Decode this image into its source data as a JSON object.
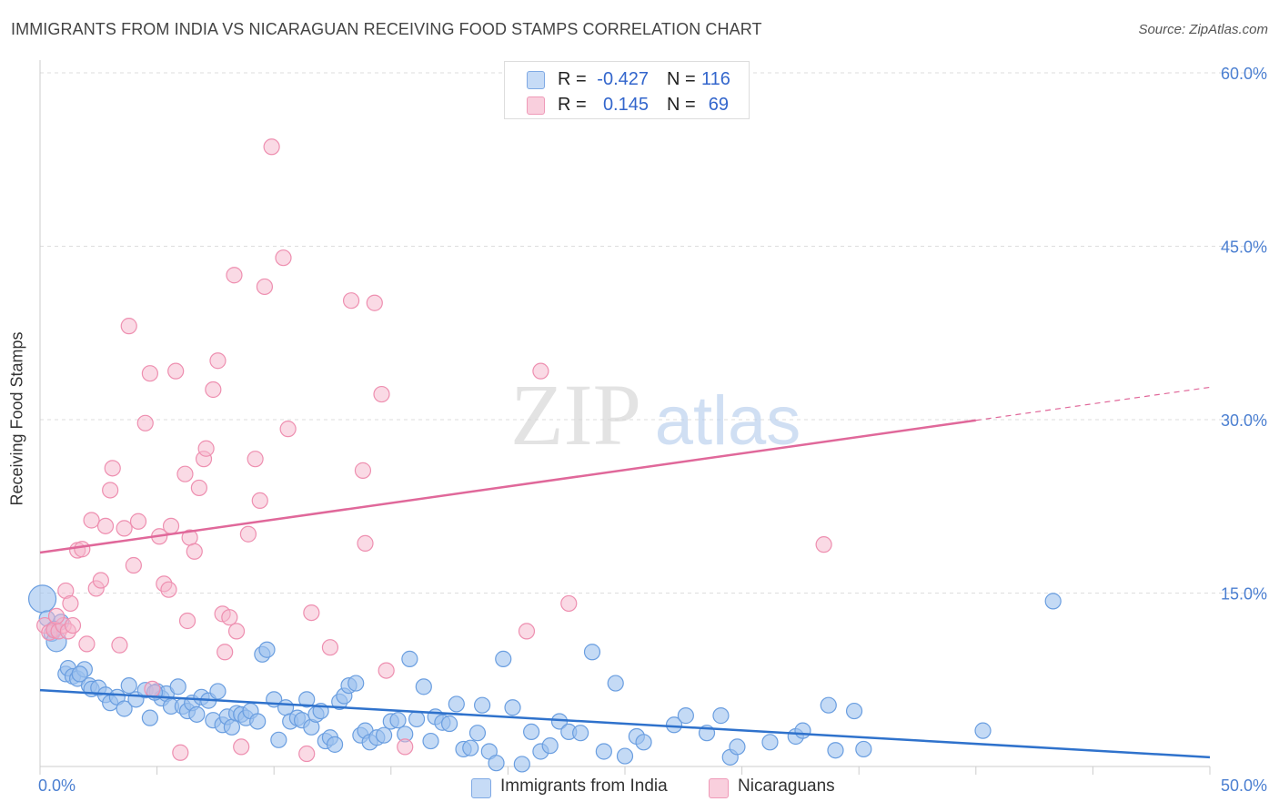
{
  "title": "IMMIGRANTS FROM INDIA VS NICARAGUAN RECEIVING FOOD STAMPS CORRELATION CHART",
  "source": "Source: ZipAtlas.com",
  "watermark": {
    "zip": "ZIP",
    "atlas": "atlas"
  },
  "legend": {
    "rows": [
      {
        "r_label": "R =",
        "r_value": "-0.427",
        "n_label": "N =",
        "n_value": "116"
      },
      {
        "r_label": "R =",
        "r_value": "0.145",
        "n_label": "N =",
        "n_value": "69"
      }
    ]
  },
  "bottom_legend": {
    "india": "Immigrants from India",
    "nicaraguans": "Nicaraguans"
  },
  "colors": {
    "india_fill": "#9dc2ee",
    "india_stroke": "#6a9ee0",
    "india_line": "#2f72cc",
    "nic_fill": "#f6b6cb",
    "nic_stroke": "#ee8fb0",
    "nic_line": "#e0689a",
    "tick_text": "#4b7fd1",
    "grid": "#dddddd"
  },
  "chart_data": {
    "type": "scatter",
    "title": "IMMIGRANTS FROM INDIA VS NICARAGUAN RECEIVING FOOD STAMPS CORRELATION CHART",
    "xlabel": "",
    "ylabel": "Receiving Food Stamps",
    "xlim": [
      0,
      50
    ],
    "ylim": [
      0,
      60
    ],
    "x_tick_labels": [
      "0.0%",
      "50.0%"
    ],
    "y_ticks": [
      15,
      30,
      45,
      60
    ],
    "y_tick_labels": [
      "15.0%",
      "30.0%",
      "45.0%",
      "60.0%"
    ],
    "grid": true,
    "series": [
      {
        "name": "Immigrants from India",
        "r": -0.427,
        "n": 116,
        "trend": {
          "x": [
            0,
            50
          ],
          "y": [
            6.6,
            0.8
          ],
          "dashed_from": null
        },
        "points": [
          [
            0.1,
            14.5
          ],
          [
            0.3,
            12.8
          ],
          [
            0.5,
            11.5
          ],
          [
            0.7,
            10.8
          ],
          [
            0.9,
            12.5
          ],
          [
            1.1,
            8.0
          ],
          [
            1.2,
            8.5
          ],
          [
            1.4,
            7.8
          ],
          [
            1.6,
            7.6
          ],
          [
            1.9,
            8.4
          ],
          [
            2.1,
            7.0
          ],
          [
            2.2,
            6.7
          ],
          [
            2.5,
            6.8
          ],
          [
            2.8,
            6.2
          ],
          [
            3.0,
            5.5
          ],
          [
            3.3,
            6.0
          ],
          [
            3.6,
            5.0
          ],
          [
            3.8,
            7.0
          ],
          [
            4.1,
            5.8
          ],
          [
            4.5,
            6.6
          ],
          [
            4.7,
            4.2
          ],
          [
            5.0,
            6.5
          ],
          [
            5.2,
            5.9
          ],
          [
            5.4,
            6.3
          ],
          [
            5.6,
            5.2
          ],
          [
            5.9,
            6.9
          ],
          [
            6.1,
            5.2
          ],
          [
            6.3,
            4.8
          ],
          [
            6.5,
            5.5
          ],
          [
            6.7,
            4.5
          ],
          [
            6.9,
            6.0
          ],
          [
            7.2,
            5.7
          ],
          [
            7.4,
            4.0
          ],
          [
            7.6,
            6.5
          ],
          [
            7.8,
            3.6
          ],
          [
            8.0,
            4.3
          ],
          [
            8.2,
            3.4
          ],
          [
            8.4,
            4.6
          ],
          [
            8.6,
            4.5
          ],
          [
            8.8,
            4.2
          ],
          [
            9.0,
            4.8
          ],
          [
            9.3,
            3.9
          ],
          [
            9.5,
            9.7
          ],
          [
            9.7,
            10.1
          ],
          [
            10.0,
            5.8
          ],
          [
            10.2,
            2.3
          ],
          [
            10.5,
            5.1
          ],
          [
            10.7,
            3.9
          ],
          [
            11.0,
            4.2
          ],
          [
            11.2,
            4.0
          ],
          [
            11.4,
            5.8
          ],
          [
            11.6,
            3.4
          ],
          [
            11.8,
            4.5
          ],
          [
            12.0,
            4.8
          ],
          [
            12.2,
            2.2
          ],
          [
            12.4,
            2.5
          ],
          [
            12.6,
            1.9
          ],
          [
            12.8,
            5.6
          ],
          [
            13.0,
            6.1
          ],
          [
            13.2,
            7.0
          ],
          [
            13.5,
            7.2
          ],
          [
            13.7,
            2.7
          ],
          [
            13.9,
            3.1
          ],
          [
            14.1,
            2.1
          ],
          [
            14.4,
            2.5
          ],
          [
            14.7,
            2.7
          ],
          [
            15.0,
            3.9
          ],
          [
            15.3,
            4.0
          ],
          [
            15.6,
            2.8
          ],
          [
            15.8,
            9.3
          ],
          [
            16.1,
            4.1
          ],
          [
            16.4,
            6.9
          ],
          [
            16.7,
            2.2
          ],
          [
            16.9,
            4.3
          ],
          [
            17.2,
            3.8
          ],
          [
            17.5,
            3.7
          ],
          [
            17.8,
            5.4
          ],
          [
            18.1,
            1.5
          ],
          [
            18.4,
            1.6
          ],
          [
            18.7,
            2.9
          ],
          [
            18.9,
            5.3
          ],
          [
            19.2,
            1.3
          ],
          [
            19.5,
            0.3
          ],
          [
            19.8,
            9.3
          ],
          [
            20.2,
            5.1
          ],
          [
            20.6,
            0.2
          ],
          [
            21.0,
            3.0
          ],
          [
            21.4,
            1.3
          ],
          [
            21.8,
            1.8
          ],
          [
            22.2,
            3.9
          ],
          [
            22.6,
            3.0
          ],
          [
            23.1,
            2.9
          ],
          [
            23.6,
            9.9
          ],
          [
            24.1,
            1.3
          ],
          [
            24.6,
            7.2
          ],
          [
            25.0,
            0.9
          ],
          [
            25.5,
            2.6
          ],
          [
            25.8,
            2.1
          ],
          [
            27.1,
            3.6
          ],
          [
            27.6,
            4.4
          ],
          [
            28.5,
            2.9
          ],
          [
            29.1,
            4.4
          ],
          [
            29.5,
            0.8
          ],
          [
            29.8,
            1.7
          ],
          [
            31.2,
            2.1
          ],
          [
            32.3,
            2.6
          ],
          [
            32.6,
            3.1
          ],
          [
            33.7,
            5.3
          ],
          [
            34.0,
            1.4
          ],
          [
            34.8,
            4.8
          ],
          [
            35.2,
            1.5
          ],
          [
            40.3,
            3.1
          ],
          [
            43.3,
            14.3
          ],
          [
            0.6,
            11.9
          ],
          [
            1.7,
            8.0
          ],
          [
            4.9,
            6.4
          ]
        ]
      },
      {
        "name": "Nicaraguans",
        "r": 0.145,
        "n": 69,
        "trend": {
          "x": [
            0,
            50
          ],
          "y": [
            18.5,
            32.8
          ],
          "dashed_from": 40
        },
        "points": [
          [
            0.2,
            12.2
          ],
          [
            0.4,
            11.6
          ],
          [
            0.6,
            11.8
          ],
          [
            0.8,
            11.7
          ],
          [
            1.0,
            12.2
          ],
          [
            1.2,
            11.7
          ],
          [
            1.4,
            12.2
          ],
          [
            1.6,
            18.7
          ],
          [
            1.8,
            18.8
          ],
          [
            1.1,
            15.2
          ],
          [
            1.3,
            14.1
          ],
          [
            2.0,
            10.6
          ],
          [
            2.2,
            21.3
          ],
          [
            2.4,
            15.4
          ],
          [
            2.6,
            16.1
          ],
          [
            2.8,
            20.8
          ],
          [
            3.0,
            23.9
          ],
          [
            3.1,
            25.8
          ],
          [
            3.4,
            10.5
          ],
          [
            3.6,
            20.6
          ],
          [
            3.8,
            38.1
          ],
          [
            4.0,
            17.4
          ],
          [
            4.2,
            21.2
          ],
          [
            4.5,
            29.7
          ],
          [
            4.7,
            34.0
          ],
          [
            4.8,
            6.7
          ],
          [
            5.1,
            19.9
          ],
          [
            5.3,
            15.8
          ],
          [
            5.5,
            15.3
          ],
          [
            5.6,
            20.8
          ],
          [
            5.8,
            34.2
          ],
          [
            6.0,
            1.2
          ],
          [
            6.2,
            25.3
          ],
          [
            6.3,
            12.6
          ],
          [
            6.4,
            19.8
          ],
          [
            6.6,
            18.6
          ],
          [
            6.8,
            24.1
          ],
          [
            7.0,
            26.6
          ],
          [
            7.1,
            27.5
          ],
          [
            7.4,
            32.6
          ],
          [
            7.6,
            35.1
          ],
          [
            7.8,
            13.2
          ],
          [
            7.9,
            9.9
          ],
          [
            8.1,
            12.9
          ],
          [
            8.3,
            42.5
          ],
          [
            8.4,
            11.7
          ],
          [
            8.6,
            1.7
          ],
          [
            8.9,
            20.1
          ],
          [
            9.2,
            26.6
          ],
          [
            9.4,
            23.0
          ],
          [
            9.6,
            41.5
          ],
          [
            9.9,
            53.6
          ],
          [
            10.4,
            44.0
          ],
          [
            10.6,
            29.2
          ],
          [
            11.4,
            1.1
          ],
          [
            11.6,
            13.3
          ],
          [
            12.4,
            10.3
          ],
          [
            13.3,
            40.3
          ],
          [
            13.8,
            25.6
          ],
          [
            13.9,
            19.3
          ],
          [
            14.3,
            40.1
          ],
          [
            14.6,
            32.2
          ],
          [
            14.8,
            8.3
          ],
          [
            15.6,
            1.7
          ],
          [
            20.8,
            11.7
          ],
          [
            21.4,
            34.2
          ],
          [
            22.6,
            14.1
          ],
          [
            33.5,
            19.2
          ],
          [
            0.7,
            13.0
          ]
        ]
      }
    ]
  }
}
